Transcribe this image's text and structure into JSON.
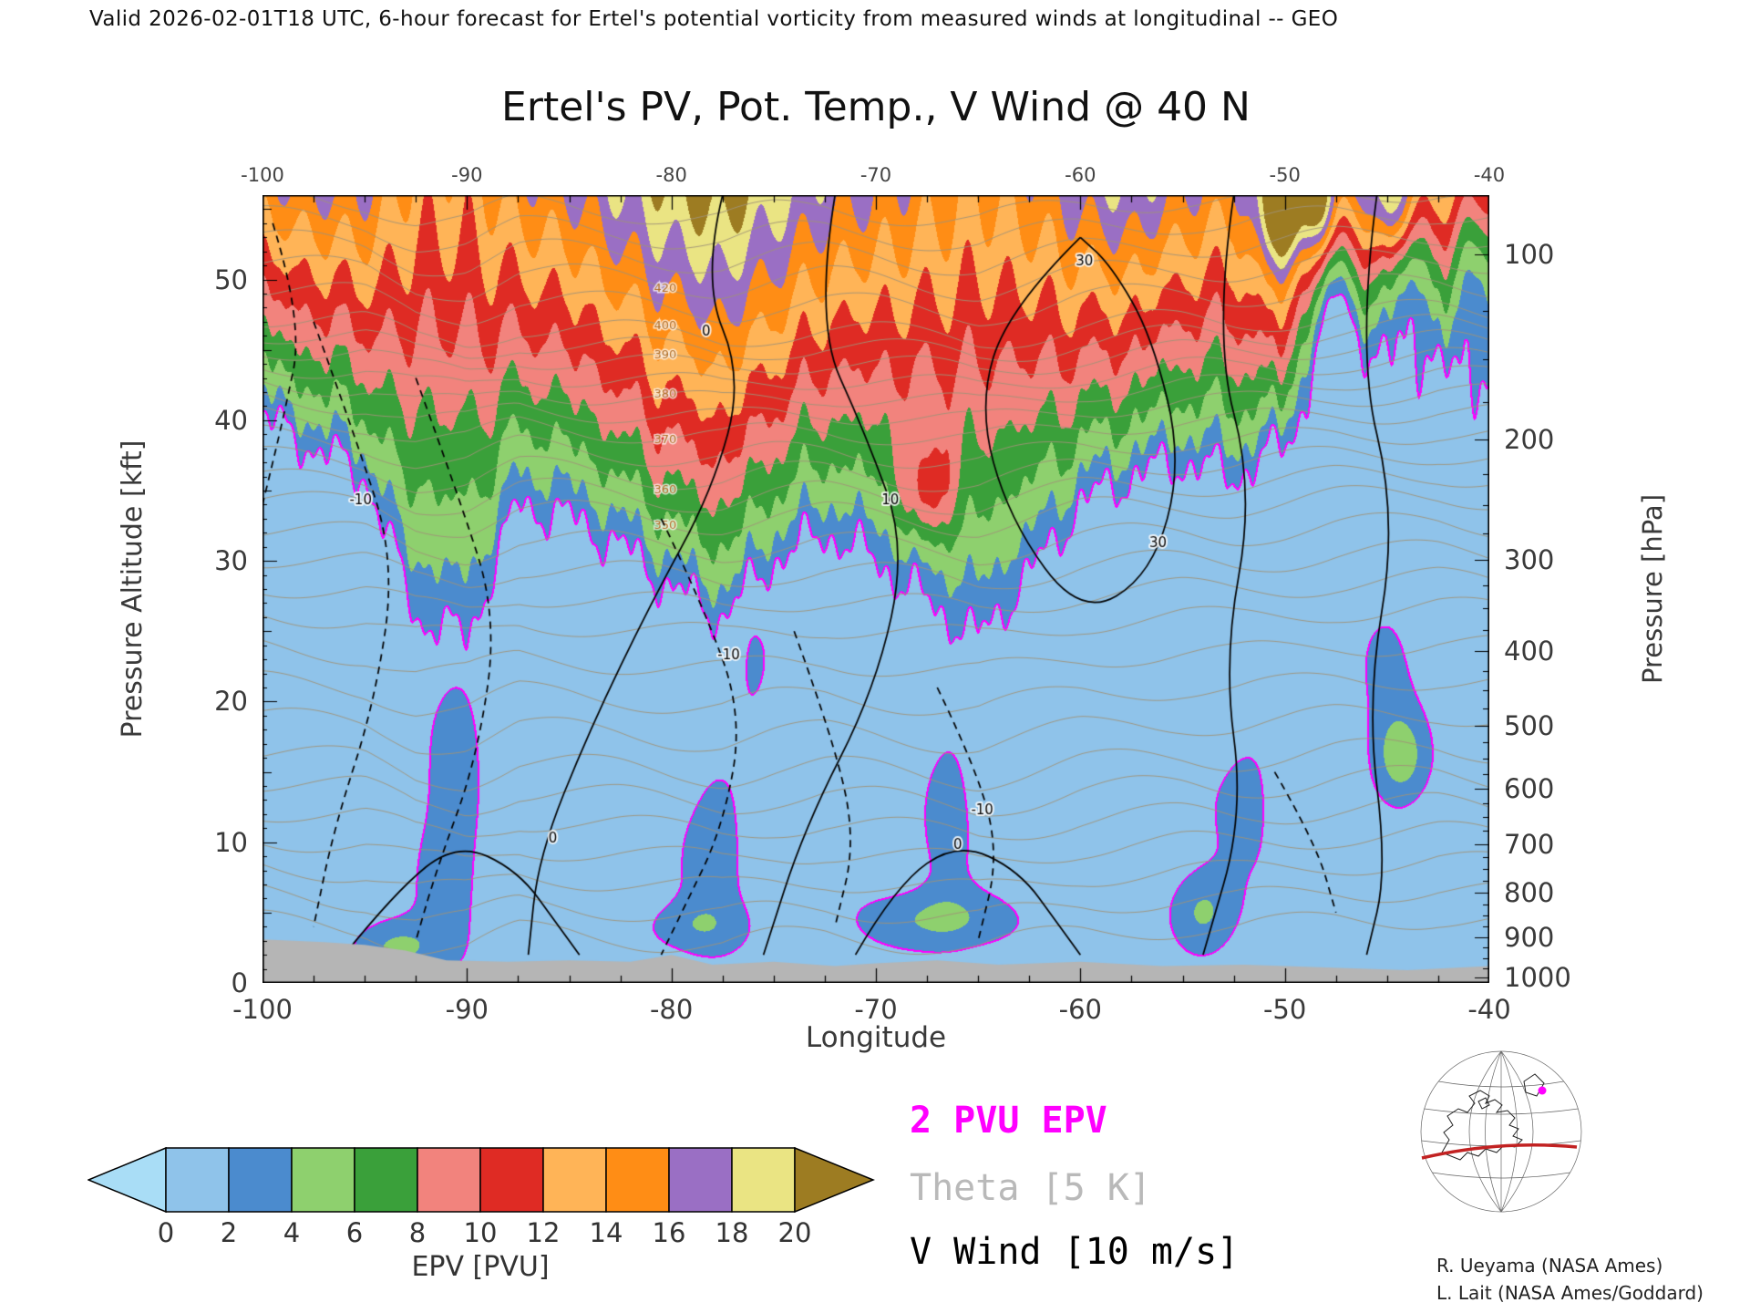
{
  "header": {
    "text": "Valid 2026-02-01T18 UTC, 6-hour forecast for Ertel's potential vorticity from measured winds at longitudinal -- GEO"
  },
  "title": "Ertel's PV, Pot. Temp., V Wind @ 40 N",
  "axes": {
    "x": {
      "label": "Longitude",
      "min": -100,
      "max": -40,
      "ticks": [
        -100,
        -90,
        -80,
        -70,
        -60,
        -50,
        -40
      ],
      "minor_step": 2.5
    },
    "y_left": {
      "label": "Pressure Altitude [kft]",
      "min": 0,
      "max": 56,
      "ticks": [
        0,
        10,
        20,
        30,
        40,
        50
      ]
    },
    "y_right": {
      "label": "Pressure [hPa]",
      "ticks": [
        100,
        200,
        300,
        400,
        500,
        600,
        700,
        800,
        900,
        1000
      ]
    }
  },
  "colorbar": {
    "label": "EPV [PVU]",
    "tick_labels": [
      "0",
      "2",
      "4",
      "6",
      "8",
      "10",
      "12",
      "14",
      "16",
      "18",
      "20"
    ],
    "levels": [
      0,
      2,
      4,
      6,
      8,
      10,
      12,
      14,
      16,
      18,
      20
    ],
    "below_color": "#a9ddf6",
    "band_colors": [
      "#8fc3ea",
      "#4b8bce",
      "#8ed06e",
      "#3aa03a",
      "#f2837d",
      "#df2b24",
      "#ffb457",
      "#ff8d15",
      "#9a6fc4",
      "#eae483"
    ],
    "above_color": "#9d7c22"
  },
  "legend": {
    "items": [
      {
        "text": "2 PVU EPV",
        "color": "#ff00ff"
      },
      {
        "text": "Theta [5 K]",
        "color": "#b9b9b9"
      },
      {
        "text": "V Wind [10 m/s]",
        "color": "#000000"
      }
    ]
  },
  "credits": {
    "line1": "R. Ueyama (NASA Ames)",
    "line2": "L. Lait (NASA Ames/Goddard)"
  },
  "map_inset": {
    "arc_color": "#c22222",
    "dot_color": "#ff00ff"
  },
  "chart_data": {
    "type": "heatmap",
    "title": "Ertel's PV, Pot. Temp., V Wind @ 40 N",
    "xlabel": "Longitude",
    "ylabel_left": "Pressure Altitude [kft]",
    "ylabel_right": "Pressure [hPa]",
    "xlim": [
      -100,
      -40
    ],
    "ylim_kft": [
      0,
      56
    ],
    "field": "Ertel's potential vorticity [PVU]",
    "contour_overlays": [
      "2 PVU EPV (magenta)",
      "Theta every 5 K (gray)",
      "V Wind every 10 m/s (black, dashed = negative)"
    ],
    "tropopause_2pvu": {
      "lon_start": -100,
      "lon_step": 2.5,
      "alt_kft": [
        40,
        38,
        36,
        26,
        24.5,
        34,
        33,
        31,
        28,
        26,
        30,
        32,
        30,
        27,
        24.5,
        29,
        34,
        36,
        37,
        36,
        38,
        41,
        42,
        43,
        41
      ]
    },
    "top_epv_56kft": [
      15,
      16,
      16,
      13,
      13,
      15,
      16,
      18,
      20,
      21,
      19,
      17,
      16,
      15,
      14,
      15,
      17,
      18,
      16,
      15,
      21,
      17,
      18,
      14,
      13
    ],
    "features": [
      [
        -91,
        8,
        2.3,
        1.2,
        5
      ],
      [
        -90.5,
        18,
        1.7,
        1.0,
        4
      ],
      [
        -93.5,
        2.5,
        3.6,
        1.4,
        1.4
      ],
      [
        -78,
        9,
        2.1,
        1.3,
        5
      ],
      [
        -79,
        4,
        2.2,
        1.8,
        1.3
      ],
      [
        -76,
        22,
        1.4,
        1.0,
        4
      ],
      [
        -67,
        4.5,
        3.4,
        2.6,
        1.5
      ],
      [
        -66.5,
        12,
        2.0,
        1.0,
        5
      ],
      [
        -67.5,
        35,
        5.0,
        0.9,
        2.5
      ],
      [
        -54,
        5,
        3.4,
        1.1,
        2.0
      ],
      [
        -52,
        13,
        1.6,
        1.6,
        5
      ],
      [
        -47.5,
        46,
        -9,
        1.2,
        7
      ],
      [
        -44.3,
        16,
        4.0,
        0.9,
        2.2
      ],
      [
        -44,
        50,
        -7,
        0.9,
        5
      ],
      [
        -50,
        55,
        7,
        0.8,
        2.6
      ],
      [
        -48.2,
        55,
        6,
        0.6,
        2.4
      ],
      [
        -44.8,
        55,
        5,
        0.7,
        2.4
      ],
      [
        -40.6,
        50,
        -6,
        0.8,
        5
      ],
      [
        -45,
        22,
        1.6,
        1.2,
        5
      ]
    ],
    "terrain_kft": {
      "lons": [
        -100,
        -97,
        -95,
        -93,
        -91,
        -88,
        -85,
        -82,
        -80,
        -78,
        -75,
        -72,
        -70,
        -67,
        -64,
        -60,
        -56,
        -52,
        -48,
        -44,
        -40
      ],
      "alt": [
        3.1,
        2.9,
        2.7,
        2.3,
        1.6,
        1.5,
        1.6,
        1.5,
        2.0,
        1.3,
        1.5,
        1.2,
        1.4,
        1.6,
        1.3,
        1.5,
        1.2,
        1.3,
        1.1,
        0.9,
        1.2
      ]
    },
    "theta_levels": [
      [
        280,
        3.5
      ],
      [
        285,
        5.5
      ],
      [
        290,
        7.5
      ],
      [
        295,
        9.5
      ],
      [
        300,
        11.5
      ],
      [
        305,
        13.5
      ],
      [
        310,
        15.5
      ],
      [
        315,
        18
      ],
      [
        320,
        20.5
      ],
      [
        325,
        23
      ],
      [
        330,
        25.5
      ],
      [
        335,
        27.5
      ],
      [
        340,
        29.5
      ],
      [
        345,
        31.5
      ],
      [
        350,
        33.5
      ],
      [
        355,
        35
      ],
      [
        360,
        36.5
      ],
      [
        365,
        38
      ],
      [
        370,
        39.5
      ],
      [
        375,
        40.8
      ],
      [
        380,
        42
      ],
      [
        385,
        43.2
      ],
      [
        390,
        44.4
      ],
      [
        395,
        45.5
      ],
      [
        400,
        46.6
      ],
      [
        410,
        48.5
      ],
      [
        420,
        50.3
      ],
      [
        430,
        52
      ],
      [
        440,
        53.6
      ],
      [
        450,
        55.2
      ]
    ],
    "theta_labeled": [
      350,
      360,
      370,
      380,
      390,
      400,
      420
    ],
    "theta_label_lon": -80.3,
    "wind_contours": [
      {
        "style": "solid",
        "points": [
          [
            -77.5,
            56
          ],
          [
            -78.5,
            50
          ],
          [
            -76.5,
            43
          ],
          [
            -78,
            35
          ],
          [
            -81,
            27
          ],
          [
            -84,
            18
          ],
          [
            -86.5,
            9
          ],
          [
            -87,
            2
          ]
        ]
      },
      {
        "style": "solid",
        "points": [
          [
            -72,
            56
          ],
          [
            -73,
            47
          ],
          [
            -70.5,
            39
          ],
          [
            -68.5,
            31
          ],
          [
            -70,
            21
          ],
          [
            -73.5,
            11
          ],
          [
            -75.5,
            2
          ]
        ]
      },
      {
        "style": "solid",
        "points": [
          [
            -60,
            53
          ],
          [
            -63.5,
            48
          ],
          [
            -65,
            41
          ],
          [
            -63.5,
            33
          ],
          [
            -60,
            26
          ],
          [
            -56.5,
            29
          ],
          [
            -55,
            37
          ],
          [
            -56.5,
            46
          ],
          [
            -58.5,
            51
          ],
          [
            -60,
            53
          ]
        ]
      },
      {
        "style": "solid",
        "points": [
          [
            -52.5,
            56
          ],
          [
            -53.5,
            46
          ],
          [
            -51.5,
            35
          ],
          [
            -53,
            23
          ],
          [
            -52,
            12
          ],
          [
            -54,
            2
          ]
        ]
      },
      {
        "style": "solid",
        "points": [
          [
            -45.5,
            56
          ],
          [
            -46.5,
            45
          ],
          [
            -44.5,
            33
          ],
          [
            -46,
            20
          ],
          [
            -45,
            8
          ],
          [
            -46,
            2
          ]
        ]
      },
      {
        "style": "solid",
        "points": [
          [
            -96,
            2
          ],
          [
            -93.5,
            6.5
          ],
          [
            -90.5,
            10
          ],
          [
            -87.5,
            8
          ],
          [
            -85.5,
            4
          ],
          [
            -84.5,
            2
          ]
        ]
      },
      {
        "style": "solid",
        "points": [
          [
            -71,
            2
          ],
          [
            -69,
            7
          ],
          [
            -66,
            10
          ],
          [
            -63,
            8
          ],
          [
            -61,
            4
          ],
          [
            -60,
            2
          ]
        ]
      },
      {
        "style": "dashed",
        "points": [
          [
            -97.5,
            47
          ],
          [
            -95.5,
            39
          ],
          [
            -93.5,
            30
          ],
          [
            -94.5,
            20
          ],
          [
            -96.5,
            11
          ],
          [
            -97.5,
            4
          ]
        ]
      },
      {
        "style": "dashed",
        "points": [
          [
            -92.5,
            43
          ],
          [
            -90.5,
            35
          ],
          [
            -88.5,
            26
          ],
          [
            -89.5,
            16
          ],
          [
            -91.5,
            8
          ],
          [
            -92.5,
            3
          ]
        ]
      },
      {
        "style": "dashed",
        "points": [
          [
            -80.5,
            33
          ],
          [
            -78.5,
            27
          ],
          [
            -76.5,
            19
          ],
          [
            -77.5,
            11
          ],
          [
            -79.5,
            5
          ],
          [
            -80.5,
            2
          ]
        ]
      },
      {
        "style": "dashed",
        "points": [
          [
            -74,
            25
          ],
          [
            -72,
            17
          ],
          [
            -71,
            10
          ],
          [
            -72,
            4
          ]
        ]
      },
      {
        "style": "dashed",
        "points": [
          [
            -67,
            21
          ],
          [
            -65,
            15
          ],
          [
            -64,
            9
          ],
          [
            -65,
            3
          ]
        ]
      },
      {
        "style": "dashed",
        "points": [
          [
            -50.5,
            15
          ],
          [
            -48.5,
            10
          ],
          [
            -47.5,
            5
          ]
        ]
      },
      {
        "style": "dashed",
        "points": [
          [
            -99.5,
            54
          ],
          [
            -98,
            47
          ],
          [
            -99,
            40
          ],
          [
            -100,
            34
          ]
        ]
      }
    ],
    "wind_labels": [
      {
        "text": "0",
        "lon": -78.3,
        "kft": 46
      },
      {
        "text": "0",
        "lon": -85.8,
        "kft": 10
      },
      {
        "text": "0",
        "lon": -66,
        "kft": 9.5
      },
      {
        "text": "10",
        "lon": -69.3,
        "kft": 34
      },
      {
        "text": "30",
        "lon": -59.8,
        "kft": 51
      },
      {
        "text": "30",
        "lon": -56.2,
        "kft": 31
      },
      {
        "text": "-10",
        "lon": -95.2,
        "kft": 34
      },
      {
        "text": "-10",
        "lon": -77.2,
        "kft": 23
      },
      {
        "text": "-10",
        "lon": -64.8,
        "kft": 12
      }
    ],
    "pressure_altitude_map_kft": {
      "100": 53.1,
      "200": 38.7,
      "300": 30.1,
      "400": 23.6,
      "500": 18.3,
      "600": 13.8,
      "700": 9.9,
      "800": 6.4,
      "900": 3.2,
      "1000": 0.4
    }
  }
}
